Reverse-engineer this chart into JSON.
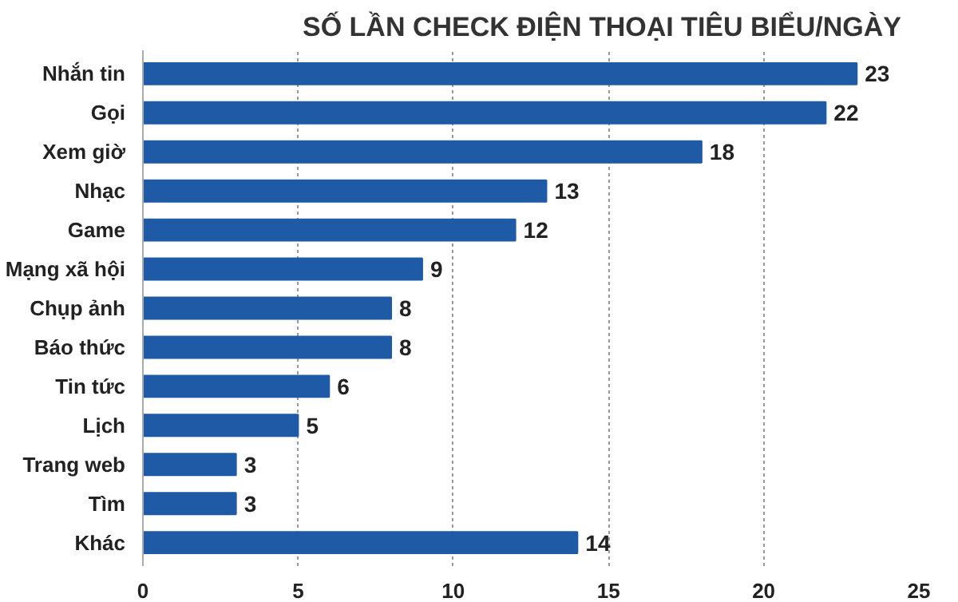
{
  "chart_data": {
    "type": "bar",
    "orientation": "horizontal",
    "title": "SỐ LẦN CHECK ĐIỆN THOẠI TIÊU BIỂU/NGÀY",
    "categories": [
      "Nhắn tin",
      "Gọi",
      "Xem giờ",
      "Nhạc",
      "Game",
      "Mạng xã hội",
      "Chụp ảnh",
      "Báo thức",
      "Tin tức",
      "Lịch",
      "Trang web",
      "Tìm",
      "Khác"
    ],
    "values": [
      23,
      22,
      18,
      13,
      12,
      9,
      8,
      8,
      6,
      5,
      3,
      3,
      14
    ],
    "color": "#1f5aa6",
    "xlim": [
      0,
      25
    ],
    "xticks": [
      0,
      5,
      10,
      15,
      20,
      25
    ],
    "grid": "x",
    "data_labels": true
  }
}
